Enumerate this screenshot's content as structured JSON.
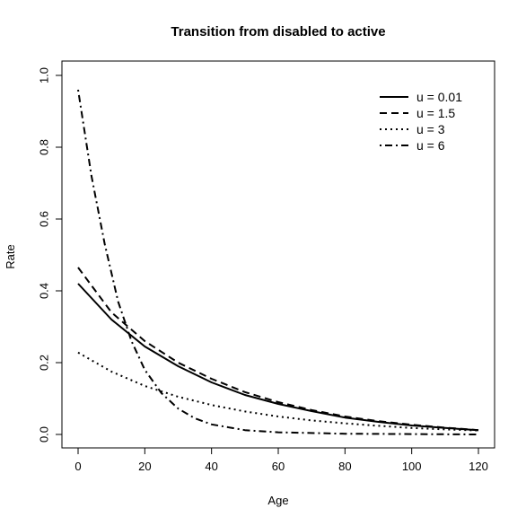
{
  "chart_data": {
    "type": "line",
    "title": "Transition from disabled to active",
    "xlabel": "Age",
    "ylabel": "Rate",
    "xlim": [
      0,
      120
    ],
    "ylim": [
      0,
      1.0
    ],
    "x_ticks": [
      "0",
      "20",
      "40",
      "60",
      "80",
      "100",
      "120"
    ],
    "y_ticks": [
      "0.0",
      "0.2",
      "0.4",
      "0.6",
      "0.8",
      "1.0"
    ],
    "grid": false,
    "legend_position": "top-right",
    "series": [
      {
        "name": "u = 0.01",
        "line_style": "solid",
        "points": [
          [
            0,
            0.42
          ],
          [
            10,
            0.32
          ],
          [
            20,
            0.245
          ],
          [
            30,
            0.19
          ],
          [
            40,
            0.145
          ],
          [
            50,
            0.11
          ],
          [
            60,
            0.085
          ],
          [
            70,
            0.065
          ],
          [
            80,
            0.047
          ],
          [
            90,
            0.035
          ],
          [
            100,
            0.025
          ],
          [
            110,
            0.018
          ],
          [
            120,
            0.012
          ]
        ]
      },
      {
        "name": "u = 1.5",
        "line_style": "dashed",
        "points": [
          [
            0,
            0.465
          ],
          [
            10,
            0.34
          ],
          [
            20,
            0.26
          ],
          [
            30,
            0.2
          ],
          [
            40,
            0.155
          ],
          [
            50,
            0.118
          ],
          [
            60,
            0.09
          ],
          [
            70,
            0.068
          ],
          [
            80,
            0.05
          ],
          [
            90,
            0.037
          ],
          [
            100,
            0.027
          ],
          [
            110,
            0.019
          ],
          [
            120,
            0.012
          ]
        ]
      },
      {
        "name": "u = 3",
        "line_style": "dotted",
        "points": [
          [
            0,
            0.228
          ],
          [
            10,
            0.175
          ],
          [
            20,
            0.135
          ],
          [
            30,
            0.105
          ],
          [
            40,
            0.082
          ],
          [
            50,
            0.064
          ],
          [
            60,
            0.05
          ],
          [
            70,
            0.039
          ],
          [
            80,
            0.031
          ],
          [
            90,
            0.024
          ],
          [
            100,
            0.018
          ],
          [
            110,
            0.014
          ],
          [
            120,
            0.011
          ]
        ]
      },
      {
        "name": "u = 6",
        "line_style": "dotdash",
        "points": [
          [
            0,
            0.96
          ],
          [
            4,
            0.72
          ],
          [
            8,
            0.53
          ],
          [
            12,
            0.37
          ],
          [
            16,
            0.26
          ],
          [
            20,
            0.18
          ],
          [
            25,
            0.115
          ],
          [
            30,
            0.072
          ],
          [
            35,
            0.045
          ],
          [
            40,
            0.028
          ],
          [
            50,
            0.012
          ],
          [
            60,
            0.006
          ],
          [
            80,
            0.002
          ],
          [
            100,
            0.001
          ],
          [
            120,
            0.0
          ]
        ]
      }
    ]
  }
}
